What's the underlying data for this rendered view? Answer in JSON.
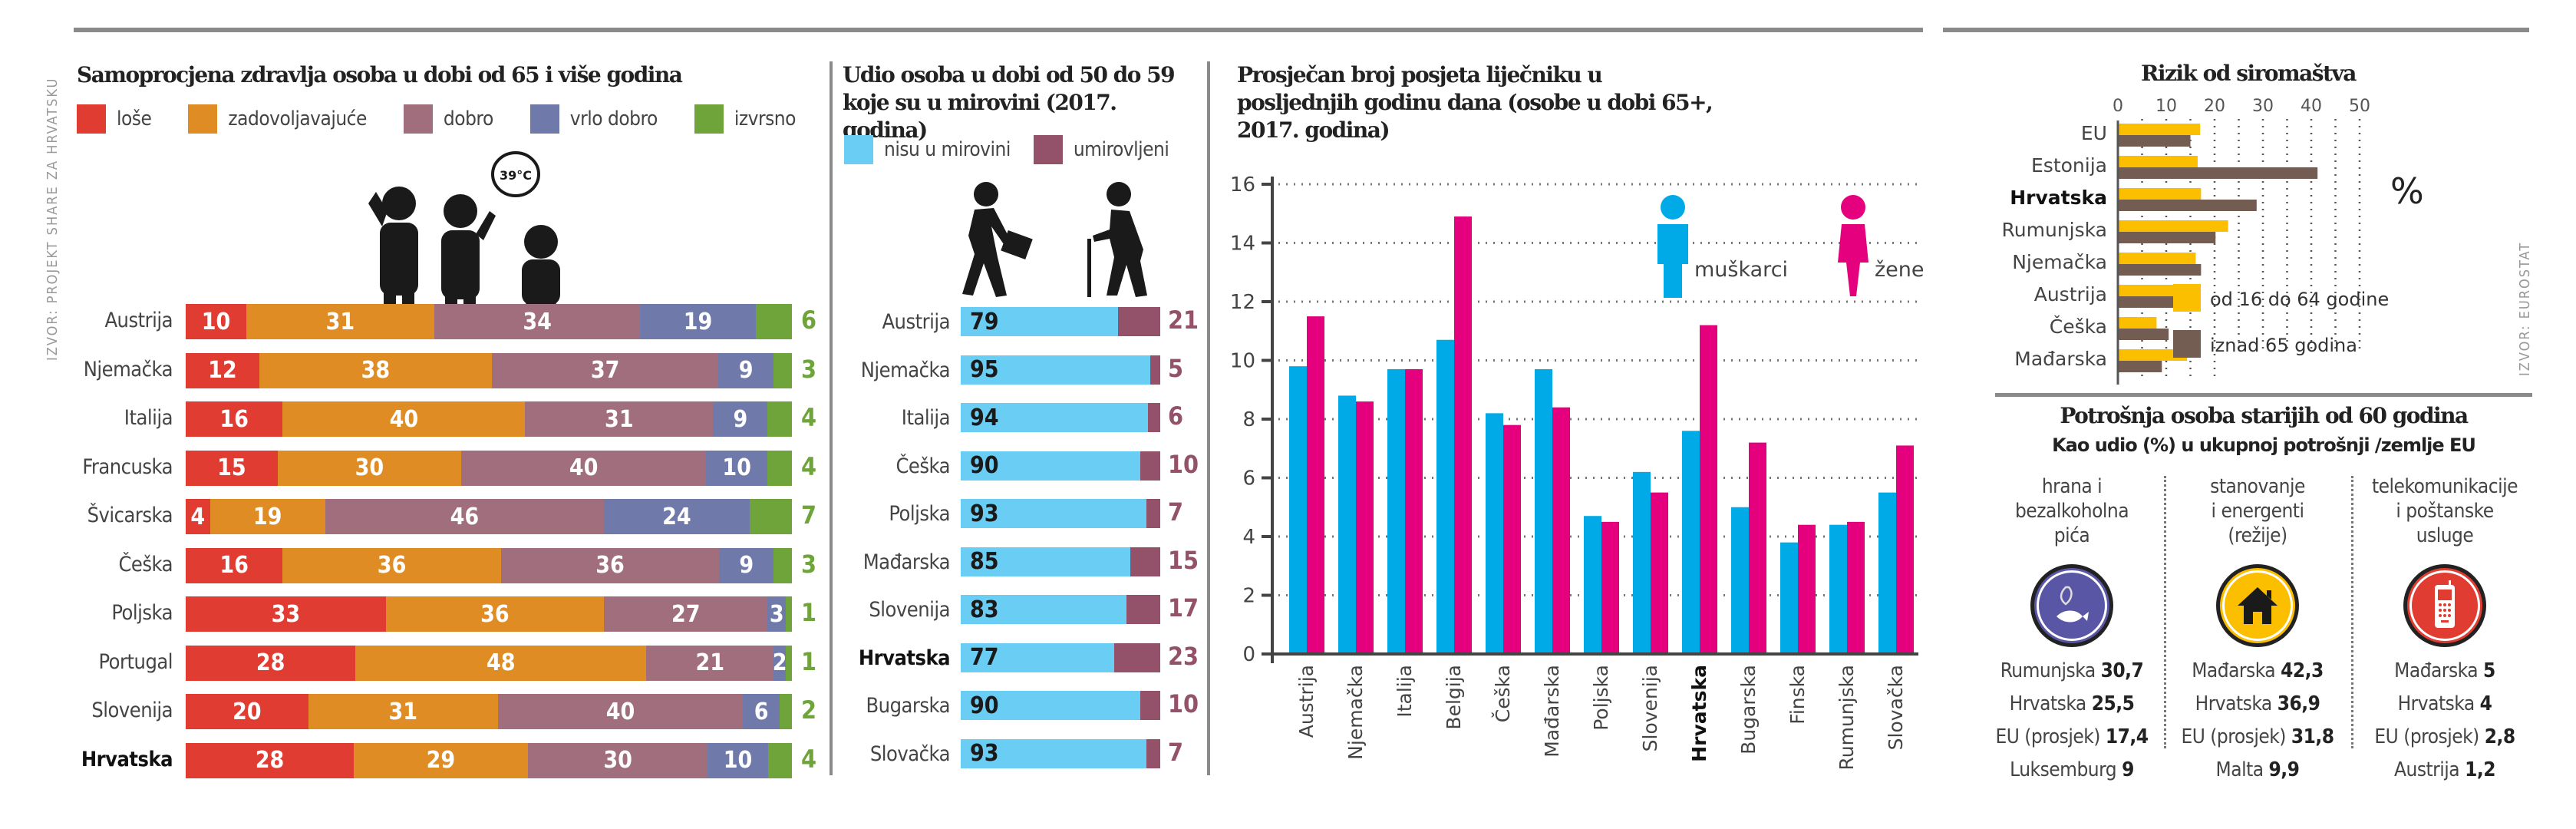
{
  "source_left": "IZVOR: PROJEKT SHARE ZA HRVATSKU",
  "source_right": "IZVOR: EUROSTAT",
  "chart_data": [
    {
      "id": "health",
      "type": "bar",
      "orientation": "horizontal-stacked-100",
      "title": "Samoprocjena zdravlja osoba u dobi od 65 i više godina",
      "unit": "%",
      "categories": [
        "Austrija",
        "Njemačka",
        "Italija",
        "Francuska",
        "Švicarska",
        "Češka",
        "Poljska",
        "Portugal",
        "Slovenija",
        "Hrvatska"
      ],
      "highlight": "Hrvatska",
      "series": [
        {
          "name": "loše",
          "color": "#e03c31",
          "values": [
            10,
            12,
            16,
            15,
            4,
            16,
            33,
            28,
            20,
            28
          ]
        },
        {
          "name": "zadovoljavajuće",
          "color": "#df8c24",
          "values": [
            31,
            38,
            40,
            30,
            19,
            36,
            36,
            48,
            31,
            29
          ]
        },
        {
          "name": "dobro",
          "color": "#a06e7c",
          "values": [
            34,
            37,
            31,
            40,
            46,
            36,
            27,
            21,
            40,
            30
          ]
        },
        {
          "name": "vrlo dobro",
          "color": "#6f7aab",
          "values": [
            19,
            9,
            9,
            10,
            24,
            9,
            3,
            2,
            6,
            10
          ]
        },
        {
          "name": "izvrsno",
          "color": "#6ea43a",
          "values": [
            6,
            3,
            4,
            4,
            7,
            3,
            1,
            1,
            2,
            4
          ]
        }
      ],
      "illustration_text": "39°C"
    },
    {
      "id": "retirement",
      "type": "bar",
      "orientation": "horizontal-stacked-100",
      "title": "Udio osoba u dobi od 50 do 59 koje su u mirovini (2017. godina)",
      "unit": "%",
      "categories": [
        "Austrija",
        "Njemačka",
        "Italija",
        "Češka",
        "Poljska",
        "Mađarska",
        "Slovenija",
        "Hrvatska",
        "Bugarska",
        "Slovačka"
      ],
      "highlight": "Hrvatska",
      "series": [
        {
          "name": "nisu u mirovini",
          "color": "#6acdf3",
          "values": [
            79,
            95,
            94,
            90,
            93,
            85,
            83,
            77,
            90,
            93
          ]
        },
        {
          "name": "umirovljeni",
          "color": "#93526a",
          "values": [
            21,
            5,
            6,
            10,
            7,
            15,
            17,
            23,
            10,
            7
          ]
        }
      ]
    },
    {
      "id": "doctor_visits",
      "type": "bar",
      "orientation": "vertical-grouped",
      "title": "Prosječan broj posjeta liječniku u posljednjih godinu dana (osobe u dobi 65+, 2017. godina)",
      "categories": [
        "Austrija",
        "Njemačka",
        "Italija",
        "Belgija",
        "Češka",
        "Mađarska",
        "Poljska",
        "Slovenija",
        "Hrvatska",
        "Bugarska",
        "Finska",
        "Rumunjska",
        "Slovačka"
      ],
      "highlight": "Hrvatska",
      "series": [
        {
          "name": "muškarci",
          "color": "#00aae7",
          "values": [
            9.8,
            8.8,
            9.7,
            10.7,
            8.2,
            9.7,
            4.7,
            6.2,
            7.6,
            5.0,
            3.8,
            4.4,
            5.5
          ]
        },
        {
          "name": "žene",
          "color": "#e5007e",
          "values": [
            11.5,
            8.6,
            9.7,
            14.9,
            7.8,
            8.4,
            4.5,
            5.5,
            11.2,
            7.2,
            4.4,
            4.5,
            7.1
          ]
        }
      ],
      "ylim": [
        0,
        16
      ],
      "yticks": [
        0,
        2,
        4,
        6,
        8,
        10,
        12,
        14,
        16
      ],
      "grid": true,
      "legend": "top-right"
    },
    {
      "id": "poverty",
      "type": "bar",
      "orientation": "horizontal-grouped",
      "title": "Rizik od siromaštva",
      "unit_label": "%",
      "categories": [
        "EU",
        "Estonija",
        "Hrvatska",
        "Rumunjska",
        "Njemačka",
        "Austrija",
        "Češka",
        "Mađarska"
      ],
      "highlight": "Hrvatska",
      "series": [
        {
          "name": "od 16 do 64 godine",
          "color": "#fbbf00",
          "values": [
            17.0,
            16.5,
            17.2,
            22.8,
            16.1,
            13.5,
            8.0,
            14.3
          ]
        },
        {
          "name": "iznad 65 godina",
          "color": "#735c52",
          "values": [
            15.0,
            41.3,
            28.7,
            20.2,
            17.2,
            12.8,
            10.5,
            9.1
          ]
        }
      ],
      "xlim": [
        0,
        50
      ],
      "xticks": [
        0,
        10,
        20,
        30,
        40,
        50
      ],
      "grid": true,
      "legend": "bottom-right"
    }
  ],
  "consumption": {
    "title": "Potrošnja osoba starijih od 60 godina",
    "subtitle": "Kao udio (%) u ukupnoj potrošnji /zemlje EU",
    "columns": [
      {
        "label_lines": [
          "hrana i",
          "bezalkoholna",
          "pića"
        ],
        "icon": "food-icon",
        "color": "#5a56a6",
        "rows": [
          {
            "country": "Rumunjska",
            "value": "30,7"
          },
          {
            "country": "Hrvatska",
            "value": "25,5"
          },
          {
            "country": "EU (prosjek)",
            "value": "17,4"
          },
          {
            "country": "Luksemburg",
            "value": "9"
          }
        ]
      },
      {
        "label_lines": [
          "stanovanje",
          "i energenti",
          "(režije)"
        ],
        "icon": "house-icon",
        "color": "#fbbf00",
        "rows": [
          {
            "country": "Mađarska",
            "value": "42,3"
          },
          {
            "country": "Hrvatska",
            "value": "36,9"
          },
          {
            "country": "EU (prosjek)",
            "value": "31,8"
          },
          {
            "country": "Malta",
            "value": "9,9"
          }
        ]
      },
      {
        "label_lines": [
          "telekomunikacije",
          "i poštanske",
          "usluge"
        ],
        "icon": "mobile-phone-icon",
        "color": "#e03c31",
        "rows": [
          {
            "country": "Mađarska",
            "value": "5"
          },
          {
            "country": "Hrvatska",
            "value": "4"
          },
          {
            "country": "EU (prosjek)",
            "value": "2,8"
          },
          {
            "country": "Austrija",
            "value": "1,2"
          }
        ]
      }
    ]
  }
}
